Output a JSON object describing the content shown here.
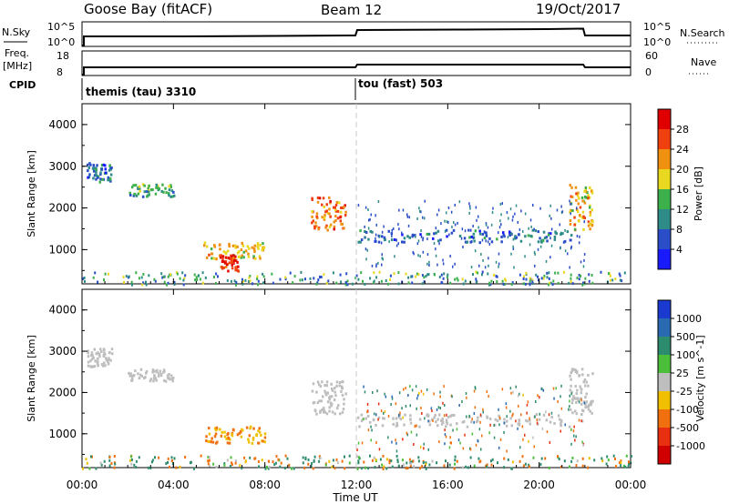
{
  "header": {
    "station": "Goose Bay (fitACF)",
    "beam": "Beam 12",
    "date": "19/Oct/2017"
  },
  "strip_labels": {
    "nsky": "N.Sky",
    "nsearch": "N.Search",
    "freq": "Freq.",
    "freq_unit": "[MHz]",
    "nave": "Nave",
    "cpid": "CPID",
    "nsky_ticks": [
      "10^5",
      "10^0"
    ],
    "nsearch_ticks": [
      "10^5",
      "10^0"
    ],
    "freq_ticks": [
      "18",
      "8"
    ],
    "nave_ticks": [
      "60",
      "0"
    ],
    "cpid_first": "themis (tau) 3310",
    "cpid_second": "tou (fast) 503"
  },
  "colors": {
    "power_scale": [
      "#1a1aff",
      "#2a4ec8",
      "#2e8b88",
      "#3cb04a",
      "#e8d820",
      "#f09010",
      "#f04010",
      "#e00000"
    ],
    "velocity_scale": [
      "#1a3ad0",
      "#2a6ab0",
      "#2e8c6e",
      "#4cbf3a",
      "#bebebe",
      "#f0c000",
      "#f07010",
      "#e83010",
      "#d00000"
    ],
    "ground_scatter": "#bebebe",
    "gridline": "#c8c8c8"
  },
  "chart_data": [
    {
      "type": "heatmap",
      "panel": "power",
      "title": "",
      "xlabel": "Time UT",
      "ylabel": "Slant Range [km]",
      "colorbar_label": "Power [dB]",
      "colorbar_ticks": [
        "28",
        "24",
        "20",
        "16",
        "12",
        "8",
        "4"
      ],
      "x_ticks": [
        "00:00",
        "04:00",
        "08:00",
        "12:00",
        "16:00",
        "20:00",
        "00:00"
      ],
      "y_ticks": [
        "4000",
        "3000",
        "2000",
        "1000"
      ],
      "xlim": [
        0,
        24
      ],
      "ylim": [
        180,
        4500
      ],
      "features": [
        {
          "t": [
            0.2,
            1.3
          ],
          "range": [
            2650,
            3100
          ],
          "power": 8
        },
        {
          "t": [
            2.0,
            4.0
          ],
          "range": [
            2300,
            2600
          ],
          "power": 12
        },
        {
          "t": [
            5.3,
            8.0
          ],
          "range": [
            800,
            1200
          ],
          "power": 20
        },
        {
          "t": [
            6.0,
            6.8
          ],
          "range": [
            500,
            900
          ],
          "power": 28
        },
        {
          "t": [
            10.0,
            11.5
          ],
          "range": [
            1500,
            2300
          ],
          "power": 24
        },
        {
          "t": [
            12.0,
            21.5
          ],
          "range": [
            1200,
            1500
          ],
          "power": 8
        },
        {
          "t": [
            21.3,
            22.3
          ],
          "range": [
            1500,
            2600
          ],
          "power": 20
        }
      ]
    },
    {
      "type": "heatmap",
      "panel": "velocity",
      "title": "",
      "xlabel": "Time UT",
      "ylabel": "Slant Range [km]",
      "colorbar_label": "Velocity [m s^-1]",
      "colorbar_ticks": [
        "1000",
        "500",
        "100",
        "25",
        "-25",
        "-100",
        "-500",
        "-1000"
      ],
      "x_ticks": [
        "00:00",
        "04:00",
        "08:00",
        "12:00",
        "16:00",
        "20:00",
        "00:00"
      ],
      "y_ticks": [
        "4000",
        "3000",
        "2000",
        "1000"
      ],
      "xlim": [
        0,
        24
      ],
      "ylim": [
        180,
        4500
      ],
      "features": [
        {
          "t": [
            0.2,
            1.3
          ],
          "range": [
            2650,
            3100
          ],
          "velocity": 0
        },
        {
          "t": [
            2.0,
            4.0
          ],
          "range": [
            2300,
            2600
          ],
          "velocity": 0
        },
        {
          "t": [
            5.3,
            8.0
          ],
          "range": [
            800,
            1200
          ],
          "velocity": -100
        },
        {
          "t": [
            10.0,
            11.5
          ],
          "range": [
            1500,
            2300
          ],
          "velocity": 0
        },
        {
          "t": [
            12.0,
            21.5
          ],
          "range": [
            1200,
            1500
          ],
          "velocity": 0
        },
        {
          "t": [
            21.3,
            22.3
          ],
          "range": [
            1500,
            2600
          ],
          "velocity": 0
        }
      ]
    }
  ]
}
